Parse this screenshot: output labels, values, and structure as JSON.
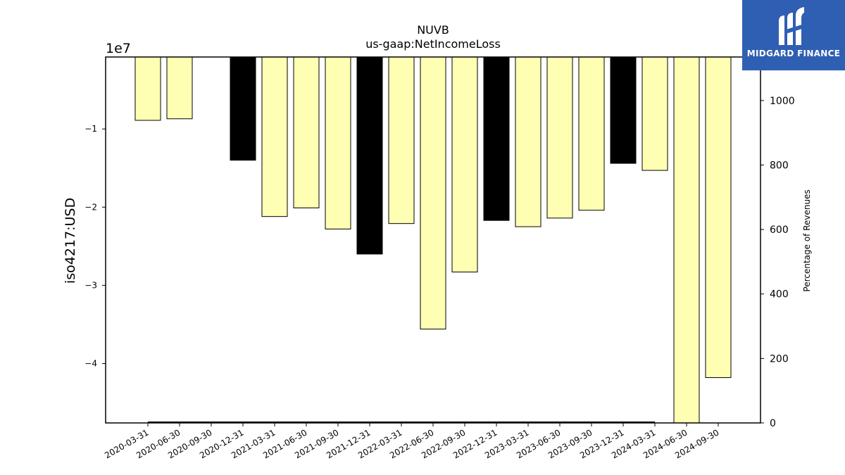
{
  "chart_data": {
    "type": "bar",
    "title": "NUVB",
    "subtitle": "us-gaap:NetIncomeLoss",
    "ylabel": "iso4217:USD",
    "y_offset_label": "1e7",
    "y2label": "Percentage of Revenues",
    "ylim": [
      -47600000.0,
      -800000.0
    ],
    "y_ticks": [
      -10000000.0,
      -20000000.0,
      -30000000.0,
      -40000000.0
    ],
    "y_tick_labels": [
      "−1",
      "−2",
      "−3",
      "−4"
    ],
    "y2lim": [
      0,
      1135
    ],
    "y2_ticks": [
      0,
      200,
      400,
      600,
      800,
      1000
    ],
    "y2_tick_labels": [
      "0",
      "200",
      "400",
      "600",
      "800",
      "1000"
    ],
    "categories": [
      "2020-03-31",
      "2020-06-30",
      "2020-09-30",
      "2020-12-31",
      "2021-03-31",
      "2021-06-30",
      "2021-09-30",
      "2021-12-31",
      "2022-03-31",
      "2022-06-30",
      "2022-09-30",
      "2022-12-31",
      "2023-03-31",
      "2023-06-30",
      "2023-09-30",
      "2023-12-31",
      "2024-03-31",
      "2024-06-30",
      "2024-09-30"
    ],
    "values": [
      -8900000,
      -8700000,
      null,
      -14000000,
      -21200000,
      -20100000,
      -22800000,
      -26000000,
      -22100000,
      -35600000,
      -28300000,
      -21700000,
      -22500000,
      -21400000,
      -20400000,
      -14400000,
      -15300000,
      -48000000,
      -41800000
    ],
    "bar_colors": [
      "#ffffb3",
      "#ffffb3",
      null,
      "#000000",
      "#ffffb3",
      "#ffffb3",
      "#ffffb3",
      "#000000",
      "#ffffb3",
      "#ffffb3",
      "#ffffb3",
      "#000000",
      "#ffffb3",
      "#ffffb3",
      "#ffffb3",
      "#000000",
      "#ffffb3",
      "#ffffb3",
      "#ffffb3"
    ],
    "secondary_line": {
      "x_from": "2020-03-31",
      "x_to": "2024-03-31",
      "value": 0,
      "color": "#000000"
    },
    "grid": false
  },
  "logo": {
    "text": "MIDGARD FINANCE",
    "color": "#2f5fb3"
  }
}
